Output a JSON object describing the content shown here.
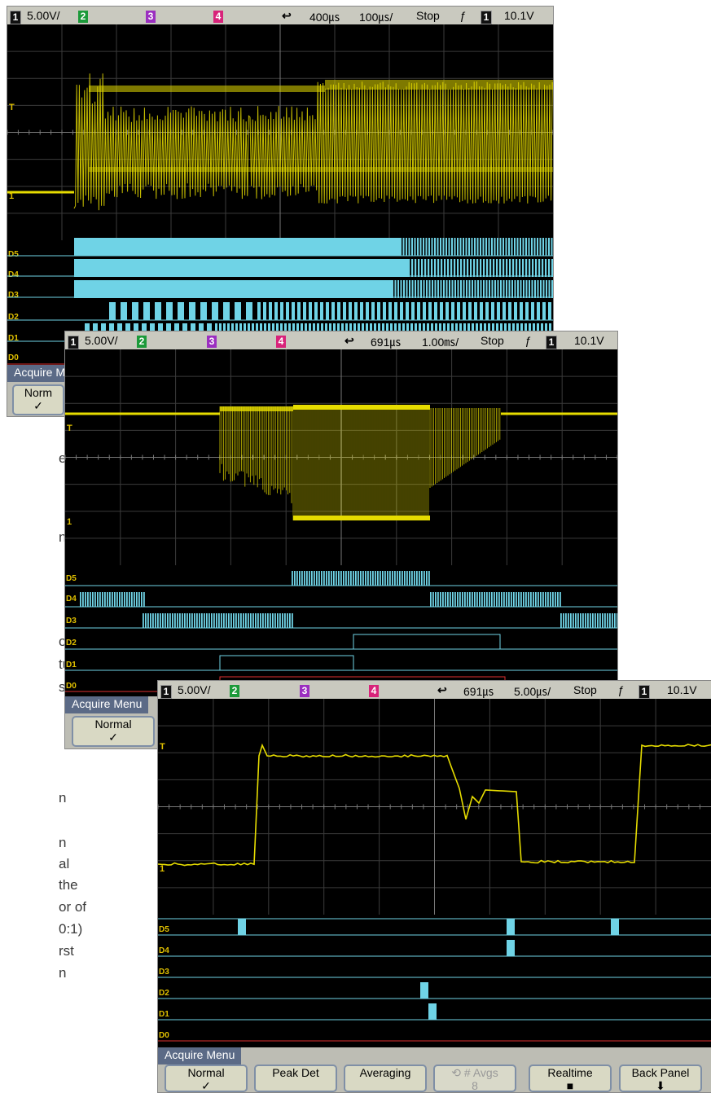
{
  "background_fragments": [
    "e",
    "nt",
    "own,",
    "ture",
    "s",
    "n",
    "n",
    "al",
    "the",
    "or of",
    "0:1)",
    "rst",
    "n"
  ],
  "colors": {
    "analog_trace": "#e6dc00",
    "digital_trace": "#6fd3e6",
    "status_bar": "#c9c9bf",
    "menu_title": "#5b6a86",
    "grid": "#3b3b3b"
  },
  "scopes": [
    {
      "id": "scope1",
      "status": {
        "ch1_num": "1",
        "ch1_scale": "5.00V/",
        "ch2_num": "2",
        "ch3_num": "3",
        "ch4_num": "4",
        "delay": "400㎲",
        "timebase": "100㎲/",
        "run_state": "Stop",
        "trigger_slope": "ƒ",
        "trig_ch": "1",
        "trigger_level": "10.1V"
      },
      "menu": {
        "title": "Acquire Me",
        "buttons": [
          {
            "label": "Norm",
            "mark": "✓"
          }
        ]
      }
    },
    {
      "id": "scope2",
      "status": {
        "ch1_num": "1",
        "ch1_scale": "5.00V/",
        "ch2_num": "2",
        "ch3_num": "3",
        "ch4_num": "4",
        "delay": "691㎲",
        "timebase": "1.00㎳/",
        "run_state": "Stop",
        "trigger_slope": "ƒ",
        "trig_ch": "1",
        "trigger_level": "10.1V"
      },
      "menu": {
        "title": "Acquire Menu",
        "buttons": [
          {
            "label": "Normal",
            "mark": "✓"
          }
        ]
      }
    },
    {
      "id": "scope3",
      "status": {
        "ch1_num": "1",
        "ch1_scale": "5.00V/",
        "ch2_num": "2",
        "ch3_num": "3",
        "ch4_num": "4",
        "delay": "691㎲",
        "timebase": "5.00㎲/",
        "run_state": "Stop",
        "trigger_slope": "ƒ",
        "trig_ch": "1",
        "trigger_level": "10.1V"
      },
      "menu": {
        "title": "Acquire Menu",
        "buttons": [
          {
            "label": "Normal",
            "mark": "✓"
          },
          {
            "label": "Peak Det",
            "mark": ""
          },
          {
            "label": "Averaging",
            "mark": ""
          },
          {
            "label": "# Avgs",
            "mark": "8"
          },
          {
            "label": "Realtime",
            "mark": "■"
          },
          {
            "label": "Back Panel",
            "mark": ""
          }
        ]
      }
    }
  ],
  "digital_labels": [
    "D5",
    "D4",
    "D3",
    "D2",
    "D1",
    "D0"
  ],
  "markers": {
    "trigger_level": "T",
    "ground": "1"
  }
}
